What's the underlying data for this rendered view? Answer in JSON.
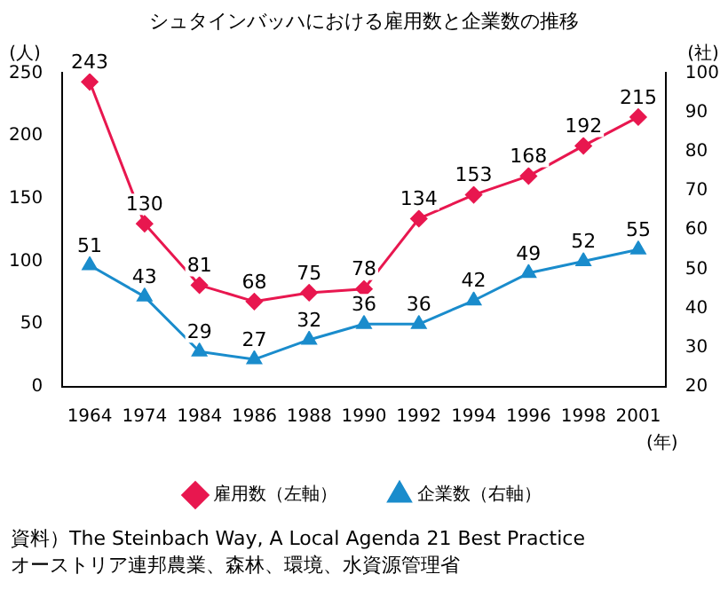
{
  "chart_data": {
    "type": "line",
    "title": "シュタインバッハにおける雇用数と企業数の推移",
    "xlabel": "(年)",
    "ylabel": "(人)",
    "y2label": "(社)",
    "categories": [
      "1964",
      "1974",
      "1984",
      "1986",
      "1988",
      "1990",
      "1992",
      "1994",
      "1996",
      "1998",
      "2001"
    ],
    "series": [
      {
        "name": "雇用数（左軸）",
        "color": "#e8174f",
        "marker": "diamond",
        "values": [
          243,
          130,
          81,
          68,
          75,
          78,
          134,
          153,
          168,
          192,
          215
        ]
      },
      {
        "name": "企業数（右軸）",
        "color": "#1a8ccc",
        "marker": "triangle",
        "axis": "y2",
        "values": [
          51,
          43,
          29,
          27,
          32,
          36,
          36,
          42,
          49,
          52,
          55
        ]
      }
    ],
    "ylim": [
      0,
      250
    ],
    "yticks": [
      0,
      50,
      100,
      150,
      200,
      250
    ],
    "y2lim": [
      20,
      100
    ],
    "y2ticks": [
      20,
      30,
      40,
      50,
      60,
      70,
      80,
      90,
      100
    ],
    "data_labels": true,
    "legend": "bottom",
    "grid": false,
    "annotations": [
      "資料）The Steinbach Way, A Local Agenda 21 Best Practice",
      "オーストリア連邦農業、森林、環境、水資源管理省"
    ]
  }
}
